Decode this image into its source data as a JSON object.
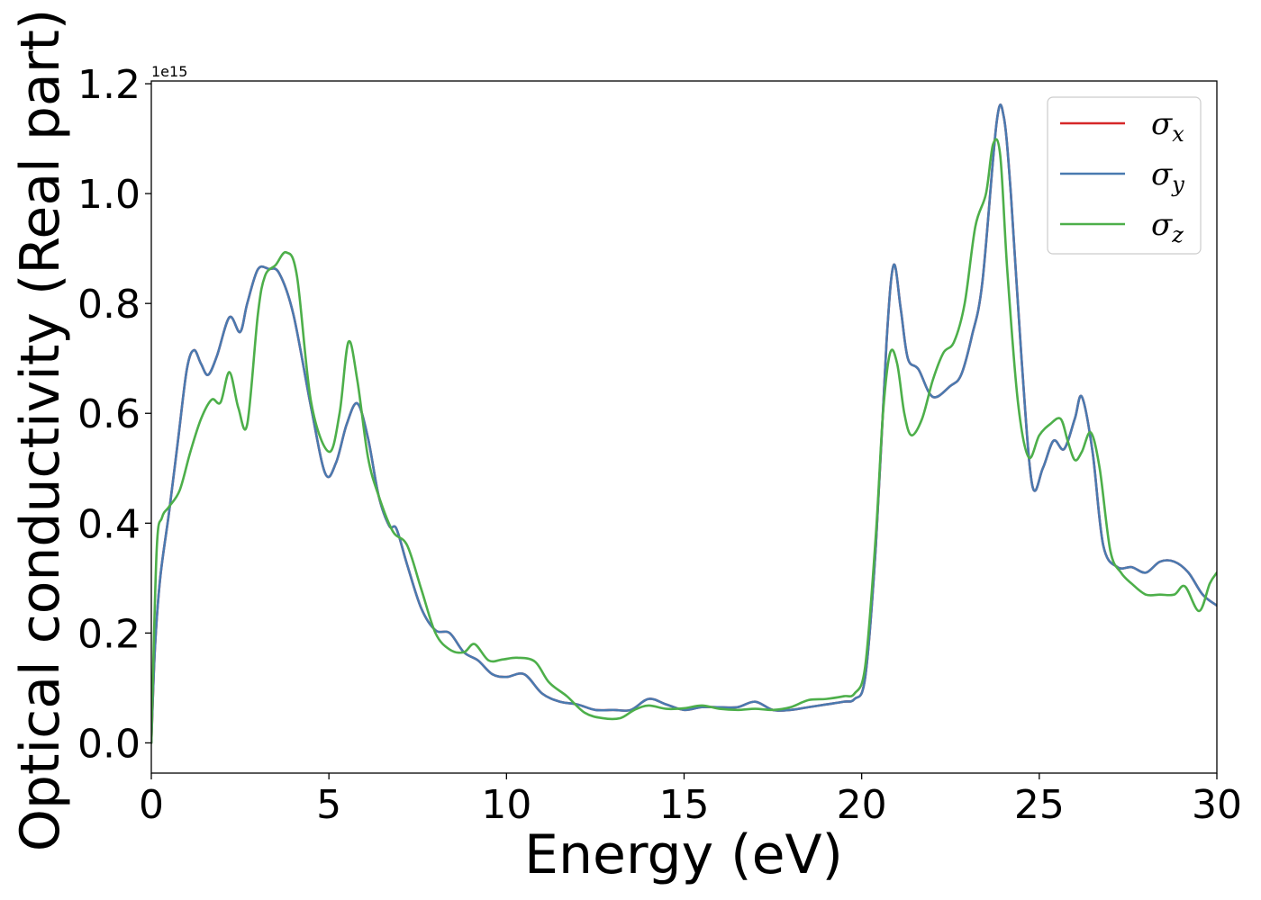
{
  "chart_data": {
    "type": "line",
    "xlabel": "Energy (eV)",
    "ylabel": "Optical conductivity (Real part)",
    "y_offset_label": "1e15",
    "y_scale": 1000000000000000.0,
    "xlim": [
      0,
      30
    ],
    "ylim": [
      -0.055,
      1.205
    ],
    "xticks": [
      0,
      5,
      10,
      15,
      20,
      25,
      30
    ],
    "xtick_labels": [
      "0",
      "5",
      "10",
      "15",
      "20",
      "25",
      "30"
    ],
    "yticks": [
      0.0,
      0.2,
      0.4,
      0.6,
      0.8,
      1.0,
      1.2
    ],
    "ytick_labels": [
      "0.0",
      "0.2",
      "0.4",
      "0.6",
      "0.8",
      "1.0",
      "1.2"
    ],
    "grid": false,
    "legend_position": "top-right",
    "series": [
      {
        "name": "σ_x",
        "label_main": "σ",
        "label_sub": "x",
        "color": "#d62728",
        "x": [
          0,
          0.1,
          0.25,
          0.5,
          0.75,
          1.0,
          1.2,
          1.4,
          1.6,
          1.85,
          2.2,
          2.5,
          2.7,
          3.0,
          3.3,
          3.6,
          4.0,
          4.5,
          4.9,
          5.2,
          5.5,
          5.8,
          6.1,
          6.4,
          6.7,
          6.9,
          7.2,
          7.6,
          8.0,
          8.4,
          8.8,
          9.2,
          9.6,
          10.0,
          10.5,
          11.0,
          11.5,
          12.0,
          12.5,
          13.0,
          13.5,
          14.0,
          14.5,
          15.0,
          15.5,
          16.0,
          16.5,
          17.0,
          17.5,
          18.0,
          18.5,
          19.0,
          19.5,
          19.8,
          20.1,
          20.4,
          20.7,
          20.9,
          21.1,
          21.3,
          21.6,
          22.0,
          22.5,
          22.8,
          23.1,
          23.4,
          23.8,
          24.0,
          24.2,
          24.5,
          24.8,
          25.1,
          25.4,
          25.7,
          26.0,
          26.2,
          26.5,
          26.8,
          27.2,
          27.6,
          28.0,
          28.4,
          28.8,
          29.2,
          29.6,
          30.0
        ],
        "values": [
          0.0,
          0.17,
          0.3,
          0.42,
          0.55,
          0.68,
          0.715,
          0.69,
          0.67,
          0.705,
          0.775,
          0.748,
          0.8,
          0.862,
          0.863,
          0.855,
          0.78,
          0.61,
          0.49,
          0.51,
          0.58,
          0.618,
          0.555,
          0.45,
          0.395,
          0.39,
          0.325,
          0.245,
          0.205,
          0.2,
          0.165,
          0.15,
          0.125,
          0.12,
          0.125,
          0.09,
          0.075,
          0.07,
          0.06,
          0.06,
          0.06,
          0.08,
          0.07,
          0.06,
          0.065,
          0.065,
          0.065,
          0.075,
          0.06,
          0.06,
          0.065,
          0.07,
          0.075,
          0.08,
          0.12,
          0.36,
          0.73,
          0.87,
          0.79,
          0.7,
          0.68,
          0.63,
          0.65,
          0.67,
          0.74,
          0.84,
          1.13,
          1.14,
          1.0,
          0.7,
          0.47,
          0.5,
          0.55,
          0.535,
          0.59,
          0.63,
          0.53,
          0.36,
          0.32,
          0.32,
          0.31,
          0.33,
          0.33,
          0.31,
          0.27,
          0.25
        ]
      },
      {
        "name": "σ_y",
        "label_main": "σ",
        "label_sub": "y",
        "color": "#4a7ab0",
        "x": [
          0,
          0.1,
          0.25,
          0.5,
          0.75,
          1.0,
          1.2,
          1.4,
          1.6,
          1.85,
          2.2,
          2.5,
          2.7,
          3.0,
          3.3,
          3.6,
          4.0,
          4.5,
          4.9,
          5.2,
          5.5,
          5.8,
          6.1,
          6.4,
          6.7,
          6.9,
          7.2,
          7.6,
          8.0,
          8.4,
          8.8,
          9.2,
          9.6,
          10.0,
          10.5,
          11.0,
          11.5,
          12.0,
          12.5,
          13.0,
          13.5,
          14.0,
          14.5,
          15.0,
          15.5,
          16.0,
          16.5,
          17.0,
          17.5,
          18.0,
          18.5,
          19.0,
          19.5,
          19.8,
          20.1,
          20.4,
          20.7,
          20.9,
          21.1,
          21.3,
          21.6,
          22.0,
          22.5,
          22.8,
          23.1,
          23.4,
          23.8,
          24.0,
          24.2,
          24.5,
          24.8,
          25.1,
          25.4,
          25.7,
          26.0,
          26.2,
          26.5,
          26.8,
          27.2,
          27.6,
          28.0,
          28.4,
          28.8,
          29.2,
          29.6,
          30.0
        ],
        "values": [
          0.0,
          0.17,
          0.3,
          0.42,
          0.55,
          0.68,
          0.715,
          0.69,
          0.67,
          0.705,
          0.775,
          0.748,
          0.8,
          0.862,
          0.863,
          0.855,
          0.78,
          0.61,
          0.49,
          0.51,
          0.58,
          0.618,
          0.555,
          0.45,
          0.395,
          0.39,
          0.325,
          0.245,
          0.205,
          0.2,
          0.165,
          0.15,
          0.125,
          0.12,
          0.125,
          0.09,
          0.075,
          0.07,
          0.06,
          0.06,
          0.06,
          0.08,
          0.07,
          0.06,
          0.065,
          0.065,
          0.065,
          0.075,
          0.06,
          0.06,
          0.065,
          0.07,
          0.075,
          0.08,
          0.12,
          0.36,
          0.73,
          0.87,
          0.79,
          0.7,
          0.68,
          0.63,
          0.65,
          0.67,
          0.74,
          0.84,
          1.13,
          1.14,
          1.0,
          0.7,
          0.47,
          0.5,
          0.55,
          0.535,
          0.59,
          0.63,
          0.53,
          0.36,
          0.32,
          0.32,
          0.31,
          0.33,
          0.33,
          0.31,
          0.27,
          0.25
        ]
      },
      {
        "name": "σ_z",
        "label_main": "σ",
        "label_sub": "z",
        "color": "#4daf4a",
        "x": [
          0,
          0.15,
          0.3,
          0.5,
          0.8,
          1.1,
          1.4,
          1.7,
          1.95,
          2.2,
          2.45,
          2.7,
          3.0,
          3.2,
          3.5,
          3.8,
          4.1,
          4.5,
          5.0,
          5.3,
          5.55,
          5.8,
          6.1,
          6.4,
          6.8,
          7.2,
          7.6,
          8.0,
          8.4,
          8.8,
          9.1,
          9.5,
          9.9,
          10.3,
          10.8,
          11.2,
          11.7,
          12.2,
          12.7,
          13.2,
          13.6,
          14.0,
          14.5,
          15.0,
          15.5,
          16.0,
          16.5,
          17.0,
          17.5,
          18.0,
          18.5,
          19.0,
          19.5,
          19.8,
          20.1,
          20.4,
          20.6,
          20.8,
          21.0,
          21.2,
          21.4,
          21.7,
          22.0,
          22.3,
          22.6,
          22.9,
          23.2,
          23.5,
          23.7,
          23.9,
          24.1,
          24.4,
          24.7,
          25.0,
          25.3,
          25.6,
          25.8,
          26.0,
          26.2,
          26.45,
          26.7,
          27.0,
          27.3,
          27.6,
          28.0,
          28.4,
          28.8,
          29.1,
          29.5,
          29.8,
          30.0
        ],
        "values": [
          0.0,
          0.35,
          0.41,
          0.43,
          0.46,
          0.53,
          0.59,
          0.625,
          0.62,
          0.675,
          0.61,
          0.58,
          0.78,
          0.85,
          0.87,
          0.893,
          0.85,
          0.62,
          0.53,
          0.6,
          0.73,
          0.66,
          0.52,
          0.45,
          0.385,
          0.36,
          0.28,
          0.2,
          0.17,
          0.165,
          0.18,
          0.15,
          0.152,
          0.155,
          0.148,
          0.11,
          0.085,
          0.055,
          0.045,
          0.045,
          0.06,
          0.068,
          0.062,
          0.063,
          0.068,
          0.062,
          0.06,
          0.062,
          0.06,
          0.065,
          0.078,
          0.08,
          0.085,
          0.09,
          0.14,
          0.38,
          0.6,
          0.71,
          0.69,
          0.6,
          0.56,
          0.59,
          0.66,
          0.71,
          0.73,
          0.8,
          0.94,
          1.0,
          1.09,
          1.07,
          0.86,
          0.62,
          0.52,
          0.56,
          0.58,
          0.59,
          0.55,
          0.515,
          0.53,
          0.565,
          0.5,
          0.35,
          0.31,
          0.29,
          0.27,
          0.27,
          0.27,
          0.285,
          0.24,
          0.29,
          0.31
        ]
      }
    ]
  }
}
